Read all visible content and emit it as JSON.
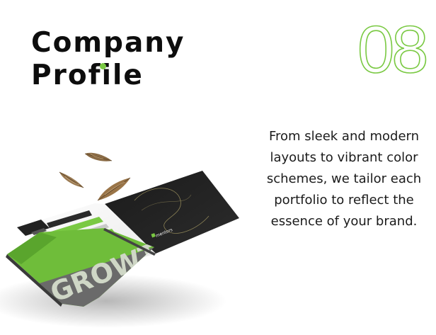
{
  "title": {
    "line1": "Company",
    "line2": "Profile"
  },
  "section_number": "08",
  "description": "From sleek and modern layouts to vibrant color schemes, we tailor each portfolio to reflect the essence of your brand.",
  "mockup": {
    "cover_text": "GROWTH",
    "brand_label": "mentors"
  },
  "colors": {
    "accent": "#7ac943",
    "dark": "#1d1d1d",
    "text": "#111111"
  },
  "icons": [
    "feather-icon"
  ]
}
